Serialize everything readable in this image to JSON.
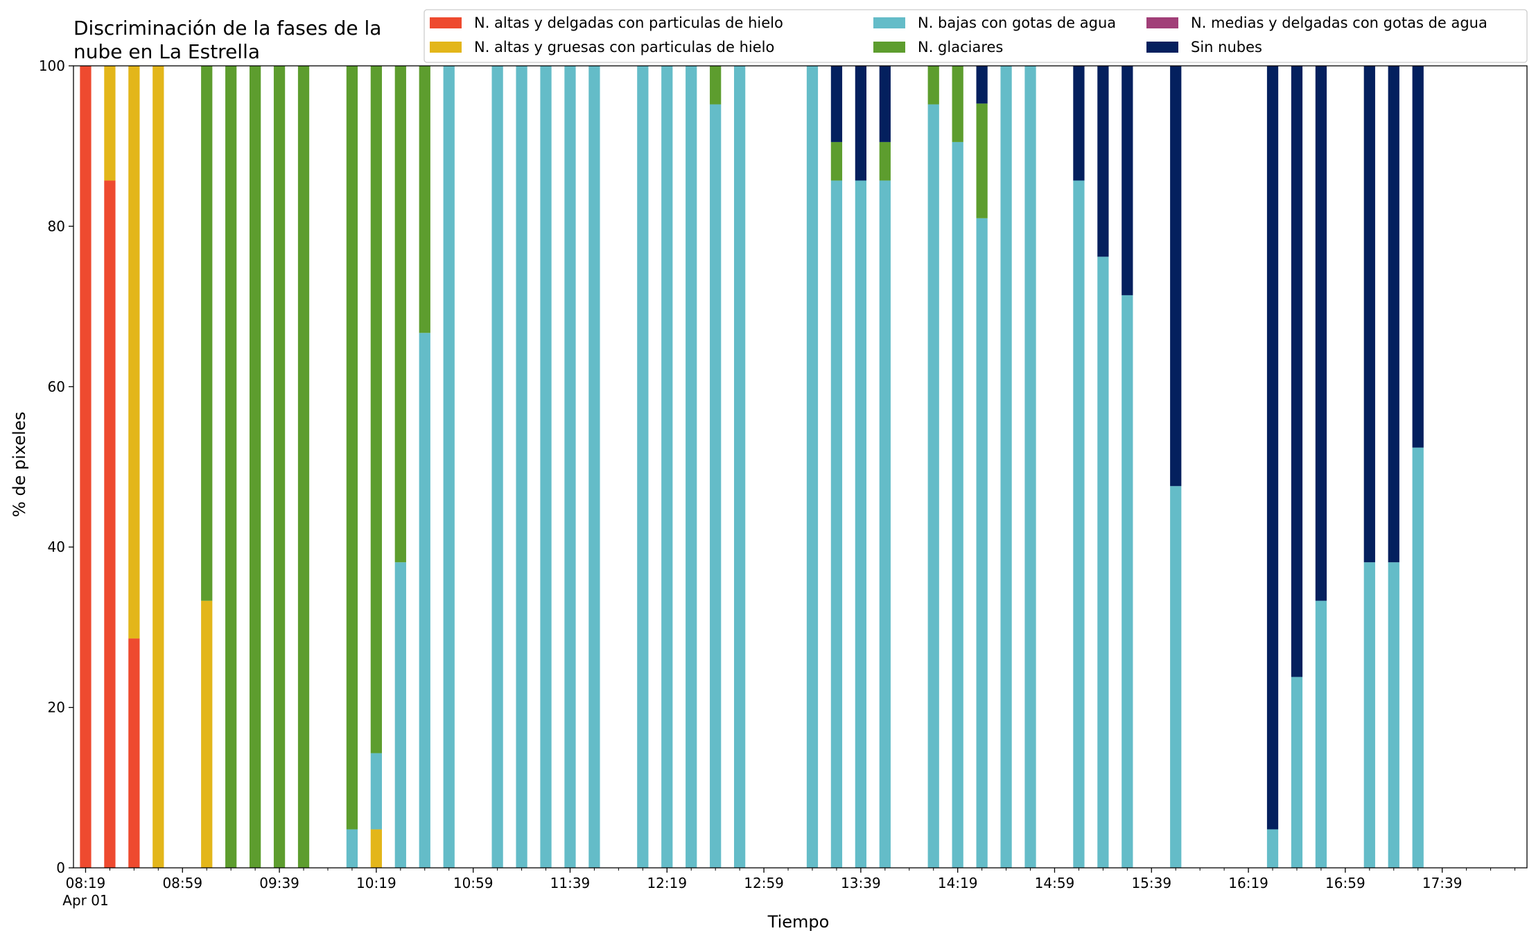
{
  "chart_data": {
    "type": "bar",
    "stacked": true,
    "title": "Discriminación de la fases de la\nnube en La Estrella",
    "xlabel": "Tiempo",
    "ylabel": "% de pixeles",
    "ylim": [
      0,
      100
    ],
    "yticks": [
      0,
      20,
      40,
      60,
      80,
      100
    ],
    "xlim": [
      "08:14",
      "18:14"
    ],
    "x_tick_labels": [
      {
        "time": "08:19",
        "label": "08:19",
        "sublabel": "Apr 01"
      },
      {
        "time": "08:59",
        "label": "08:59"
      },
      {
        "time": "09:39",
        "label": "09:39"
      },
      {
        "time": "10:19",
        "label": "10:19"
      },
      {
        "time": "10:59",
        "label": "10:59"
      },
      {
        "time": "11:39",
        "label": "11:39"
      },
      {
        "time": "12:19",
        "label": "12:19"
      },
      {
        "time": "12:59",
        "label": "12:59"
      },
      {
        "time": "13:39",
        "label": "13:39"
      },
      {
        "time": "14:19",
        "label": "14:19"
      },
      {
        "time": "14:59",
        "label": "14:59"
      },
      {
        "time": "15:39",
        "label": "15:39"
      },
      {
        "time": "16:19",
        "label": "16:19"
      },
      {
        "time": "16:59",
        "label": "16:59"
      },
      {
        "time": "17:39",
        "label": "17:39"
      }
    ],
    "x_minor_tick_times": [
      "08:29",
      "08:39",
      "08:49",
      "09:09",
      "09:19",
      "09:29",
      "09:49",
      "09:59",
      "10:09",
      "10:29",
      "10:39",
      "10:49",
      "11:09",
      "11:19",
      "11:29",
      "11:49",
      "11:59",
      "12:09",
      "12:29",
      "12:39",
      "12:49",
      "13:09",
      "13:19",
      "13:29",
      "13:49",
      "13:59",
      "14:09",
      "14:29",
      "14:39",
      "14:49",
      "15:09",
      "15:19",
      "15:29",
      "15:49",
      "15:59",
      "16:09",
      "16:29",
      "16:39",
      "16:49",
      "17:09",
      "17:19",
      "17:29",
      "17:49",
      "17:59",
      "18:09"
    ],
    "legend": {
      "placement": "top-right",
      "columns": 3
    },
    "series": [
      {
        "name": "N. altas y delgadas con particulas de hielo",
        "color": "#EE4A2F"
      },
      {
        "name": "N. altas y gruesas con particulas de hielo",
        "color": "#E3B61A"
      },
      {
        "name": "N. bajas con gotas de agua",
        "color": "#64BCC8"
      },
      {
        "name": "N. glaciares",
        "color": "#5D9D2E"
      },
      {
        "name": "N. medias y delgadas con gotas de agua",
        "color": "#A13F78"
      },
      {
        "name": "Sin nubes",
        "color": "#04205E"
      }
    ],
    "x": [
      "08:19",
      "08:29",
      "08:39",
      "08:49",
      "09:09",
      "09:19",
      "09:29",
      "09:39",
      "09:49",
      "10:09",
      "10:19",
      "10:29",
      "10:39",
      "10:49",
      "11:09",
      "11:19",
      "11:29",
      "11:39",
      "11:49",
      "12:09",
      "12:19",
      "12:29",
      "12:39",
      "12:49",
      "13:19",
      "13:29",
      "13:39",
      "13:49",
      "14:09",
      "14:19",
      "14:29",
      "14:39",
      "14:49",
      "15:09",
      "15:19",
      "15:29",
      "15:49",
      "16:29",
      "16:39",
      "16:49",
      "17:09",
      "17:19",
      "17:29"
    ],
    "values": [
      [
        100,
        0,
        0,
        0,
        0,
        0
      ],
      [
        85.7,
        14.3,
        0,
        0,
        0,
        0
      ],
      [
        28.6,
        71.4,
        0,
        0,
        0,
        0
      ],
      [
        0,
        100,
        0,
        0,
        0,
        0
      ],
      [
        0,
        33.3,
        0,
        66.7,
        0,
        0
      ],
      [
        0,
        0,
        0,
        100,
        0,
        0
      ],
      [
        0,
        0,
        0,
        100,
        0,
        0
      ],
      [
        0,
        0,
        0,
        100,
        0,
        0
      ],
      [
        0,
        0,
        0,
        100,
        0,
        0
      ],
      [
        0,
        0,
        4.8,
        95.2,
        0,
        0
      ],
      [
        0,
        4.8,
        9.5,
        85.7,
        0,
        0
      ],
      [
        0,
        0,
        38.1,
        61.9,
        0,
        0
      ],
      [
        0,
        0,
        66.7,
        33.3,
        0,
        0
      ],
      [
        0,
        0,
        100,
        0,
        0,
        0
      ],
      [
        0,
        0,
        100,
        0,
        0,
        0
      ],
      [
        0,
        0,
        100,
        0,
        0,
        0
      ],
      [
        0,
        0,
        100,
        0,
        0,
        0
      ],
      [
        0,
        0,
        100,
        0,
        0,
        0
      ],
      [
        0,
        0,
        100,
        0,
        0,
        0
      ],
      [
        0,
        0,
        100,
        0,
        0,
        0
      ],
      [
        0,
        0,
        100,
        0,
        0,
        0
      ],
      [
        0,
        0,
        100,
        0,
        0,
        0
      ],
      [
        0,
        0,
        95.2,
        4.8,
        0,
        0
      ],
      [
        0,
        0,
        100,
        0,
        0,
        0
      ],
      [
        0,
        0,
        100,
        0,
        0,
        0
      ],
      [
        0,
        0,
        85.7,
        4.8,
        0,
        9.5
      ],
      [
        0,
        0,
        85.7,
        0,
        0,
        14.3
      ],
      [
        0,
        0,
        85.7,
        4.8,
        0,
        9.5
      ],
      [
        0,
        0,
        95.2,
        4.8,
        0,
        0
      ],
      [
        0,
        0,
        90.5,
        9.5,
        0,
        0
      ],
      [
        0,
        0,
        81.0,
        14.3,
        0,
        4.7
      ],
      [
        0,
        0,
        100,
        0,
        0,
        0
      ],
      [
        0,
        0,
        100,
        0,
        0,
        0
      ],
      [
        0,
        0,
        85.7,
        0,
        0,
        14.3
      ],
      [
        0,
        0,
        76.2,
        0,
        0,
        23.8
      ],
      [
        0,
        0,
        71.4,
        0,
        0,
        28.6
      ],
      [
        0,
        0,
        47.6,
        0,
        0,
        52.4
      ],
      [
        0,
        0,
        4.8,
        0,
        0,
        95.2
      ],
      [
        0,
        0,
        23.8,
        0,
        0,
        76.2
      ],
      [
        0,
        0,
        33.3,
        0,
        0,
        66.7
      ],
      [
        0,
        0,
        38.1,
        0,
        0,
        61.9
      ],
      [
        0,
        0,
        38.1,
        0,
        0,
        61.9
      ],
      [
        0,
        0,
        52.4,
        0,
        0,
        47.6
      ]
    ]
  }
}
